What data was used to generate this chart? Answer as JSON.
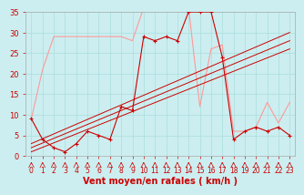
{
  "xlabel": "Vent moyen/en rafales ( km/h )",
  "xlim": [
    -0.5,
    23.5
  ],
  "ylim": [
    0,
    35
  ],
  "xticks": [
    0,
    1,
    2,
    3,
    4,
    5,
    6,
    7,
    8,
    9,
    10,
    11,
    12,
    13,
    14,
    15,
    16,
    17,
    18,
    19,
    20,
    21,
    22,
    23
  ],
  "yticks": [
    0,
    5,
    10,
    15,
    20,
    25,
    30,
    35
  ],
  "bg_color": "#cceef0",
  "grid_color": "#aadddd",
  "rafales_x": [
    0,
    1,
    2,
    3,
    4,
    5,
    6,
    7,
    8,
    9,
    10,
    11,
    12,
    13,
    14,
    15,
    16,
    17,
    18,
    19,
    20,
    21,
    22,
    23
  ],
  "rafales_y": [
    9,
    21,
    29,
    29,
    29,
    29,
    29,
    29,
    29,
    28,
    36,
    37,
    37,
    35,
    36,
    12,
    26,
    27,
    6,
    6,
    7,
    13,
    8,
    13
  ],
  "rafales_color": "#ff9999",
  "moyen_x": [
    0,
    1,
    2,
    3,
    4,
    5,
    6,
    7,
    8,
    9,
    10,
    11,
    12,
    13,
    14,
    15,
    16,
    17,
    18,
    19,
    20,
    21,
    22,
    23
  ],
  "moyen_y": [
    9,
    4,
    2,
    1,
    3,
    6,
    5,
    4,
    12,
    11,
    29,
    28,
    29,
    28,
    35,
    35,
    35,
    24,
    4,
    6,
    7,
    6,
    7,
    5
  ],
  "moyen_color": "#cc0000",
  "moyen_marker": "+",
  "trend1_x": [
    0,
    23
  ],
  "trend1_y": [
    1,
    26
  ],
  "trend2_x": [
    0,
    23
  ],
  "trend2_y": [
    2,
    28
  ],
  "trend3_x": [
    0,
    23
  ],
  "trend3_y": [
    3,
    30
  ],
  "trend_color": "#cc0000",
  "arrow_dirs": [
    2,
    1,
    3,
    2,
    1,
    2,
    3,
    2,
    1,
    1,
    2,
    2,
    2,
    2,
    2,
    2,
    2,
    2,
    2,
    2,
    2,
    1,
    2,
    2
  ],
  "marker_size": 3,
  "xlabel_color": "#cc0000",
  "tick_color": "#cc0000",
  "label_fontsize": 7,
  "tick_fontsize": 6
}
